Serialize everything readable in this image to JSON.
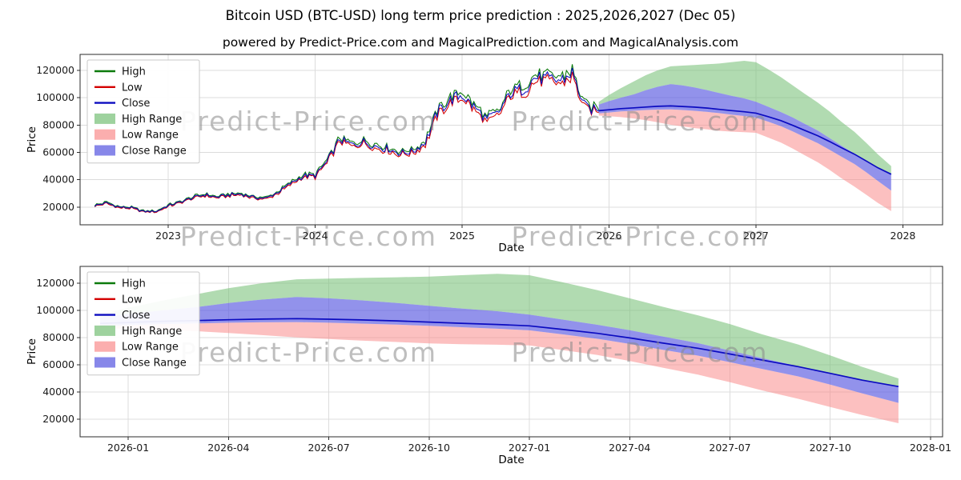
{
  "title": "Bitcoin USD (BTC-USD) long term price prediction : 2025,2026,2027 (Dec 05)",
  "subtitle": "powered by Predict-Price.com and MagicalPrediction.com and MagicalAnalysis.com",
  "colors": {
    "high": "#0b7a0b",
    "low": "#d40000",
    "close": "#0b0bc0",
    "high_range": "rgba(125,195,125,0.6)",
    "low_range": "rgba(250,140,140,0.55)",
    "close_range": "rgba(95,95,225,0.68)",
    "grid": "#dcdcdc",
    "spine": "#2b2b2b",
    "tick_text": "#1a1a1a",
    "watermark": "#8a8a8a"
  },
  "legend": {
    "items": [
      {
        "label": "High",
        "type": "line",
        "color": "#0b7a0b"
      },
      {
        "label": "Low",
        "type": "line",
        "color": "#d40000"
      },
      {
        "label": "Close",
        "type": "line",
        "color": "#0b0bc0"
      },
      {
        "label": "High Range",
        "type": "patch",
        "color": "rgba(125,195,125,0.75)"
      },
      {
        "label": "Low Range",
        "type": "patch",
        "color": "rgba(250,140,140,0.7)"
      },
      {
        "label": "Close Range",
        "type": "patch",
        "color": "rgba(95,95,225,0.75)"
      }
    ]
  },
  "chart_data": {
    "type": "line",
    "panels": [
      {
        "name": "history-and-forecast",
        "xlabel": "Date",
        "ylabel": "Price",
        "xlim": [
          2022.4,
          2028.27
        ],
        "ylim": [
          7000,
          131700
        ],
        "xticks": [
          2023,
          2024,
          2025,
          2026,
          2027,
          2028
        ],
        "xtick_labels": [
          "2023",
          "2024",
          "2025",
          "2026",
          "2027",
          "2028"
        ],
        "yticks": [
          20000,
          40000,
          60000,
          80000,
          100000,
          120000
        ],
        "show_history": true
      },
      {
        "name": "forecast-detail",
        "xlabel": "Date",
        "ylabel": "Price",
        "xlim": [
          2025.88,
          2028.03
        ],
        "ylim": [
          7000,
          132500
        ],
        "xticks": [
          2026.0,
          2026.25,
          2026.5,
          2026.75,
          2027.0,
          2027.25,
          2027.5,
          2027.75,
          2028.0
        ],
        "xtick_labels": [
          "2026-01",
          "2026-04",
          "2026-07",
          "2026-10",
          "2027-01",
          "2027-04",
          "2027-07",
          "2027-10",
          "2028-01"
        ],
        "yticks": [
          20000,
          40000,
          60000,
          80000,
          100000,
          120000
        ],
        "show_history": false
      }
    ],
    "history": {
      "noise_frac": 0.045,
      "spread_frac": 0.022,
      "x": [
        2022.5,
        2022.58,
        2022.67,
        2022.75,
        2022.83,
        2022.92,
        2023.0,
        2023.08,
        2023.17,
        2023.25,
        2023.33,
        2023.42,
        2023.5,
        2023.58,
        2023.67,
        2023.75,
        2023.83,
        2023.92,
        2024.0,
        2024.08,
        2024.17,
        2024.25,
        2024.33,
        2024.42,
        2024.5,
        2024.58,
        2024.67,
        2024.75,
        2024.83,
        2024.92,
        2025.0,
        2025.08,
        2025.17,
        2025.25,
        2025.33,
        2025.42,
        2025.5,
        2025.58,
        2025.67,
        2025.75,
        2025.83,
        2025.93
      ],
      "close": [
        21000,
        23000,
        19800,
        19500,
        16800,
        16800,
        21000,
        23500,
        27000,
        29000,
        27200,
        29000,
        29500,
        27000,
        26500,
        31000,
        37000,
        42800,
        42800,
        53000,
        69500,
        65500,
        68000,
        64500,
        62500,
        59500,
        61000,
        67500,
        89000,
        98500,
        102000,
        93000,
        84000,
        89000,
        104000,
        106500,
        114500,
        113500,
        112500,
        118000,
        94000,
        90000
      ]
    },
    "forecast": {
      "x": [
        2025.93,
        2026.0,
        2026.08,
        2026.17,
        2026.25,
        2026.33,
        2026.42,
        2026.5,
        2026.58,
        2026.67,
        2026.75,
        2026.83,
        2026.92,
        2027.0,
        2027.08,
        2027.17,
        2027.25,
        2027.33,
        2027.42,
        2027.5,
        2027.58,
        2027.67,
        2027.75,
        2027.83,
        2027.92
      ],
      "high_upper": [
        97000,
        102000,
        107000,
        112000,
        116500,
        120000,
        123000,
        123500,
        124000,
        124500,
        125000,
        126000,
        127000,
        126000,
        121000,
        115000,
        109000,
        103000,
        96500,
        90000,
        82500,
        75000,
        67000,
        58500,
        50000
      ],
      "close_upper": [
        95000,
        97500,
        100000,
        102500,
        105500,
        108000,
        110000,
        109000,
        107500,
        105500,
        103500,
        101500,
        99500,
        97000,
        93500,
        89500,
        85500,
        81000,
        76000,
        70500,
        65000,
        59000,
        53500,
        48500,
        44500
      ],
      "close": [
        90500,
        91200,
        92000,
        92600,
        93200,
        93700,
        94000,
        93600,
        93100,
        92400,
        91500,
        90600,
        89700,
        88700,
        86200,
        83200,
        79800,
        76200,
        72200,
        68000,
        63500,
        58700,
        53700,
        48700,
        44000
      ],
      "close_lower": [
        88500,
        89200,
        90000,
        90500,
        91000,
        91300,
        91500,
        91000,
        90400,
        89600,
        88700,
        87700,
        86600,
        85400,
        82600,
        79200,
        75400,
        71200,
        66800,
        62000,
        57000,
        51500,
        45500,
        39000,
        32000
      ],
      "low_lower": [
        87000,
        86500,
        85800,
        84800,
        83500,
        82000,
        80200,
        79000,
        77800,
        76800,
        75800,
        75200,
        74800,
        74300,
        71000,
        67200,
        62800,
        58000,
        52800,
        47200,
        41200,
        35000,
        29000,
        23000,
        17000
      ]
    },
    "watermarks": [
      {
        "panel": 0,
        "xf": 0.116,
        "yf": 0.446,
        "text": "Predict-Price.com"
      },
      {
        "panel": 0,
        "xf": 0.5,
        "yf": 0.446,
        "text": "Predict-Price.com"
      },
      {
        "panel": 0,
        "xf": 0.116,
        "yf": 1.122,
        "text": "Predict-Price.com"
      },
      {
        "panel": 0,
        "xf": 0.5,
        "yf": 1.122,
        "text": "Predict-Price.com"
      },
      {
        "panel": 1,
        "xf": 0.116,
        "yf": 0.559,
        "text": "Predict-Price.com"
      },
      {
        "panel": 1,
        "xf": 0.5,
        "yf": 0.559,
        "text": "Predict-Price.com"
      }
    ]
  }
}
